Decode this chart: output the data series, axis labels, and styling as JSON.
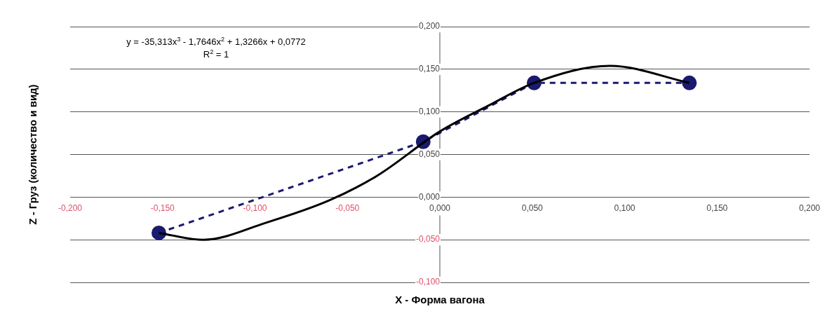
{
  "chart_data": {
    "type": "line",
    "xlabel": "X - Форма вагона",
    "ylabel": "Z - Груз (количество и вид)",
    "annotations": [
      "y = -35,313x$^{3}$ - 1,7646x$^{2}$ + 1,3266x + 0,0772",
      "R$^{2}$ = 1"
    ],
    "xlim": [
      -0.2,
      0.2
    ],
    "ylim": [
      -0.1,
      0.2
    ],
    "xticks": [
      {
        "value": -0.2,
        "label": "-0,200"
      },
      {
        "value": -0.15,
        "label": "-0,150"
      },
      {
        "value": -0.1,
        "label": "-0,100"
      },
      {
        "value": -0.05,
        "label": "-0,050"
      },
      {
        "value": 0,
        "label": "0,000"
      },
      {
        "value": 0.05,
        "label": "0,050"
      },
      {
        "value": 0.1,
        "label": "0,100"
      },
      {
        "value": 0.15,
        "label": "0,150"
      },
      {
        "value": 0.2,
        "label": "0,200"
      }
    ],
    "yticks": [
      {
        "value": -0.1,
        "label": "-0,100"
      },
      {
        "value": -0.05,
        "label": "-0,050"
      },
      {
        "value": 0,
        "label": "0,000"
      },
      {
        "value": 0.05,
        "label": "0,050"
      },
      {
        "value": 0.1,
        "label": "0,100"
      },
      {
        "value": 0.15,
        "label": "0,150"
      },
      {
        "value": 0.2,
        "label": "0,200"
      }
    ],
    "grid": "y",
    "legend": false,
    "series": [
      {
        "color": "#000000",
        "line_style": "solid",
        "marker": "none",
        "x": [
          -0.152,
          -0.128,
          -0.094,
          -0.06,
          -0.034,
          0,
          0.026,
          0.051,
          0.092,
          0.135
        ],
        "values": [
          -0.042,
          -0.05,
          -0.03,
          -0.004,
          0.025,
          0.077,
          0.107,
          0.134,
          0.154,
          0.134
        ]
      },
      {
        "color": "#1a1a6e",
        "line_style": "dashed",
        "marker": "circle",
        "x": [
          -0.152,
          -0.009,
          0.051,
          0.135
        ],
        "values": [
          -0.042,
          0.065,
          0.134,
          0.134
        ]
      }
    ]
  }
}
